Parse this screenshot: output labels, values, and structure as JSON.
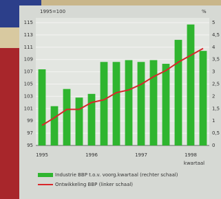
{
  "chart_data": {
    "type": "bar-line",
    "left_axis_label": "1995=100",
    "right_axis_label": "%",
    "x_label": "kwartaal",
    "categories": [
      "1995",
      null,
      null,
      null,
      "1996",
      null,
      null,
      null,
      "1997",
      null,
      null,
      null,
      "1998",
      null
    ],
    "series": [
      {
        "name": "Industrie BBP t.o.v. voorg.kwartaal (rechter schaal)",
        "type": "bar",
        "color": "#2fb52f",
        "axis": "y",
        "values": [
          107.4,
          101.4,
          104.2,
          102.8,
          103.4,
          108.6,
          108.6,
          108.9,
          108.6,
          108.9,
          108.3,
          112.2,
          114.7,
          110.4
        ]
      },
      {
        "name": "Ontwikkeling BBP (linker schaal)",
        "type": "line",
        "color": "#d8262a",
        "axis": "y2",
        "values": [
          0.82,
          1.13,
          1.47,
          1.47,
          1.75,
          1.86,
          2.15,
          2.26,
          2.49,
          2.8,
          3.05,
          3.39,
          3.67,
          3.95
        ]
      }
    ],
    "ylim": [
      95,
      115
    ],
    "yticks": [
      95,
      97,
      99,
      101,
      103,
      105,
      107,
      109,
      111,
      113,
      115
    ],
    "y2lim": [
      0,
      5
    ],
    "y2ticks": [
      0,
      {
        "value": 0.5,
        "label": "0,5"
      },
      1,
      {
        "value": 1.5,
        "label": "1,5"
      },
      2,
      {
        "value": 2.5,
        "label": "2,5"
      },
      3,
      {
        "value": 3.5,
        "label": "3,5"
      },
      4,
      {
        "value": 4.5,
        "label": "4,5"
      },
      5
    ],
    "grid": true
  }
}
